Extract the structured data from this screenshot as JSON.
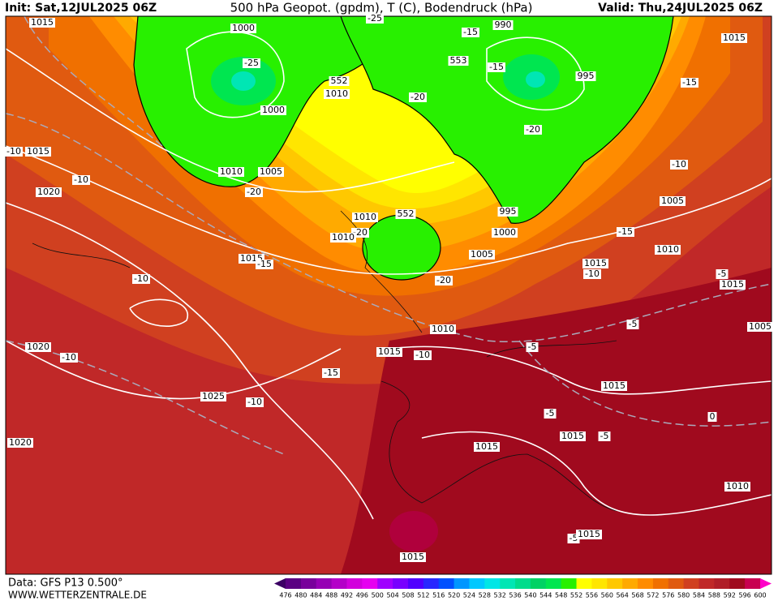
{
  "header": {
    "init": "Init: Sat,12JUL2025 06Z",
    "title": "500 hPa Geopot. (gpdm), T (C), Bodendruck (hPa)",
    "valid": "Valid: Thu,24JUL2025 06Z"
  },
  "footer": {
    "data": "Data: GFS P13 0.500°",
    "site": "WWW.WETTERZENTRALE.DE"
  },
  "colorbar": {
    "levels": [
      476,
      480,
      484,
      488,
      492,
      496,
      500,
      504,
      508,
      512,
      516,
      520,
      524,
      528,
      532,
      536,
      540,
      544,
      548,
      552,
      556,
      560,
      564,
      568,
      572,
      576,
      580,
      584,
      588,
      592,
      596,
      600
    ],
    "colors": [
      "#3c0064",
      "#5a0082",
      "#78009b",
      "#9600b4",
      "#b400c8",
      "#d200dc",
      "#e600f0",
      "#a000ff",
      "#7800ff",
      "#5000ff",
      "#2828ff",
      "#0050ff",
      "#0096ff",
      "#00c8ff",
      "#00e6e6",
      "#00e6b4",
      "#00dc8c",
      "#00d264",
      "#00e650",
      "#28f000",
      "#ffff00",
      "#ffe600",
      "#ffc800",
      "#ffaa00",
      "#ff8c00",
      "#f07000",
      "#e05a10",
      "#d04020",
      "#c02828",
      "#b01e28",
      "#a00a1e",
      "#c80050",
      "#ff00c8"
    ]
  },
  "map_labels": [
    "1015",
    "1000",
    "-25",
    "-15",
    "990",
    "1015",
    "-25",
    "553",
    "-15",
    "995",
    "-15",
    "552",
    "1010",
    "-20",
    "1000",
    "-20",
    "-10",
    "1015",
    "1010",
    "1005",
    "-10",
    "-10",
    "1020",
    "-20",
    "1005",
    "1010",
    "552",
    "995",
    "-20",
    "1010",
    "1000",
    "-15",
    "1005",
    "1010",
    "1015",
    "-15",
    "1015",
    "-10",
    "-5",
    "1015",
    "-10",
    "-20",
    "-5",
    "1010",
    "1005",
    "1020",
    "1015",
    "-10",
    "-10",
    "-5",
    "-15",
    "1015",
    "1025",
    "-10",
    "-5",
    "0",
    "1015",
    "-5",
    "1020",
    "1015",
    "1010",
    "-5",
    "1015",
    "1015"
  ]
}
